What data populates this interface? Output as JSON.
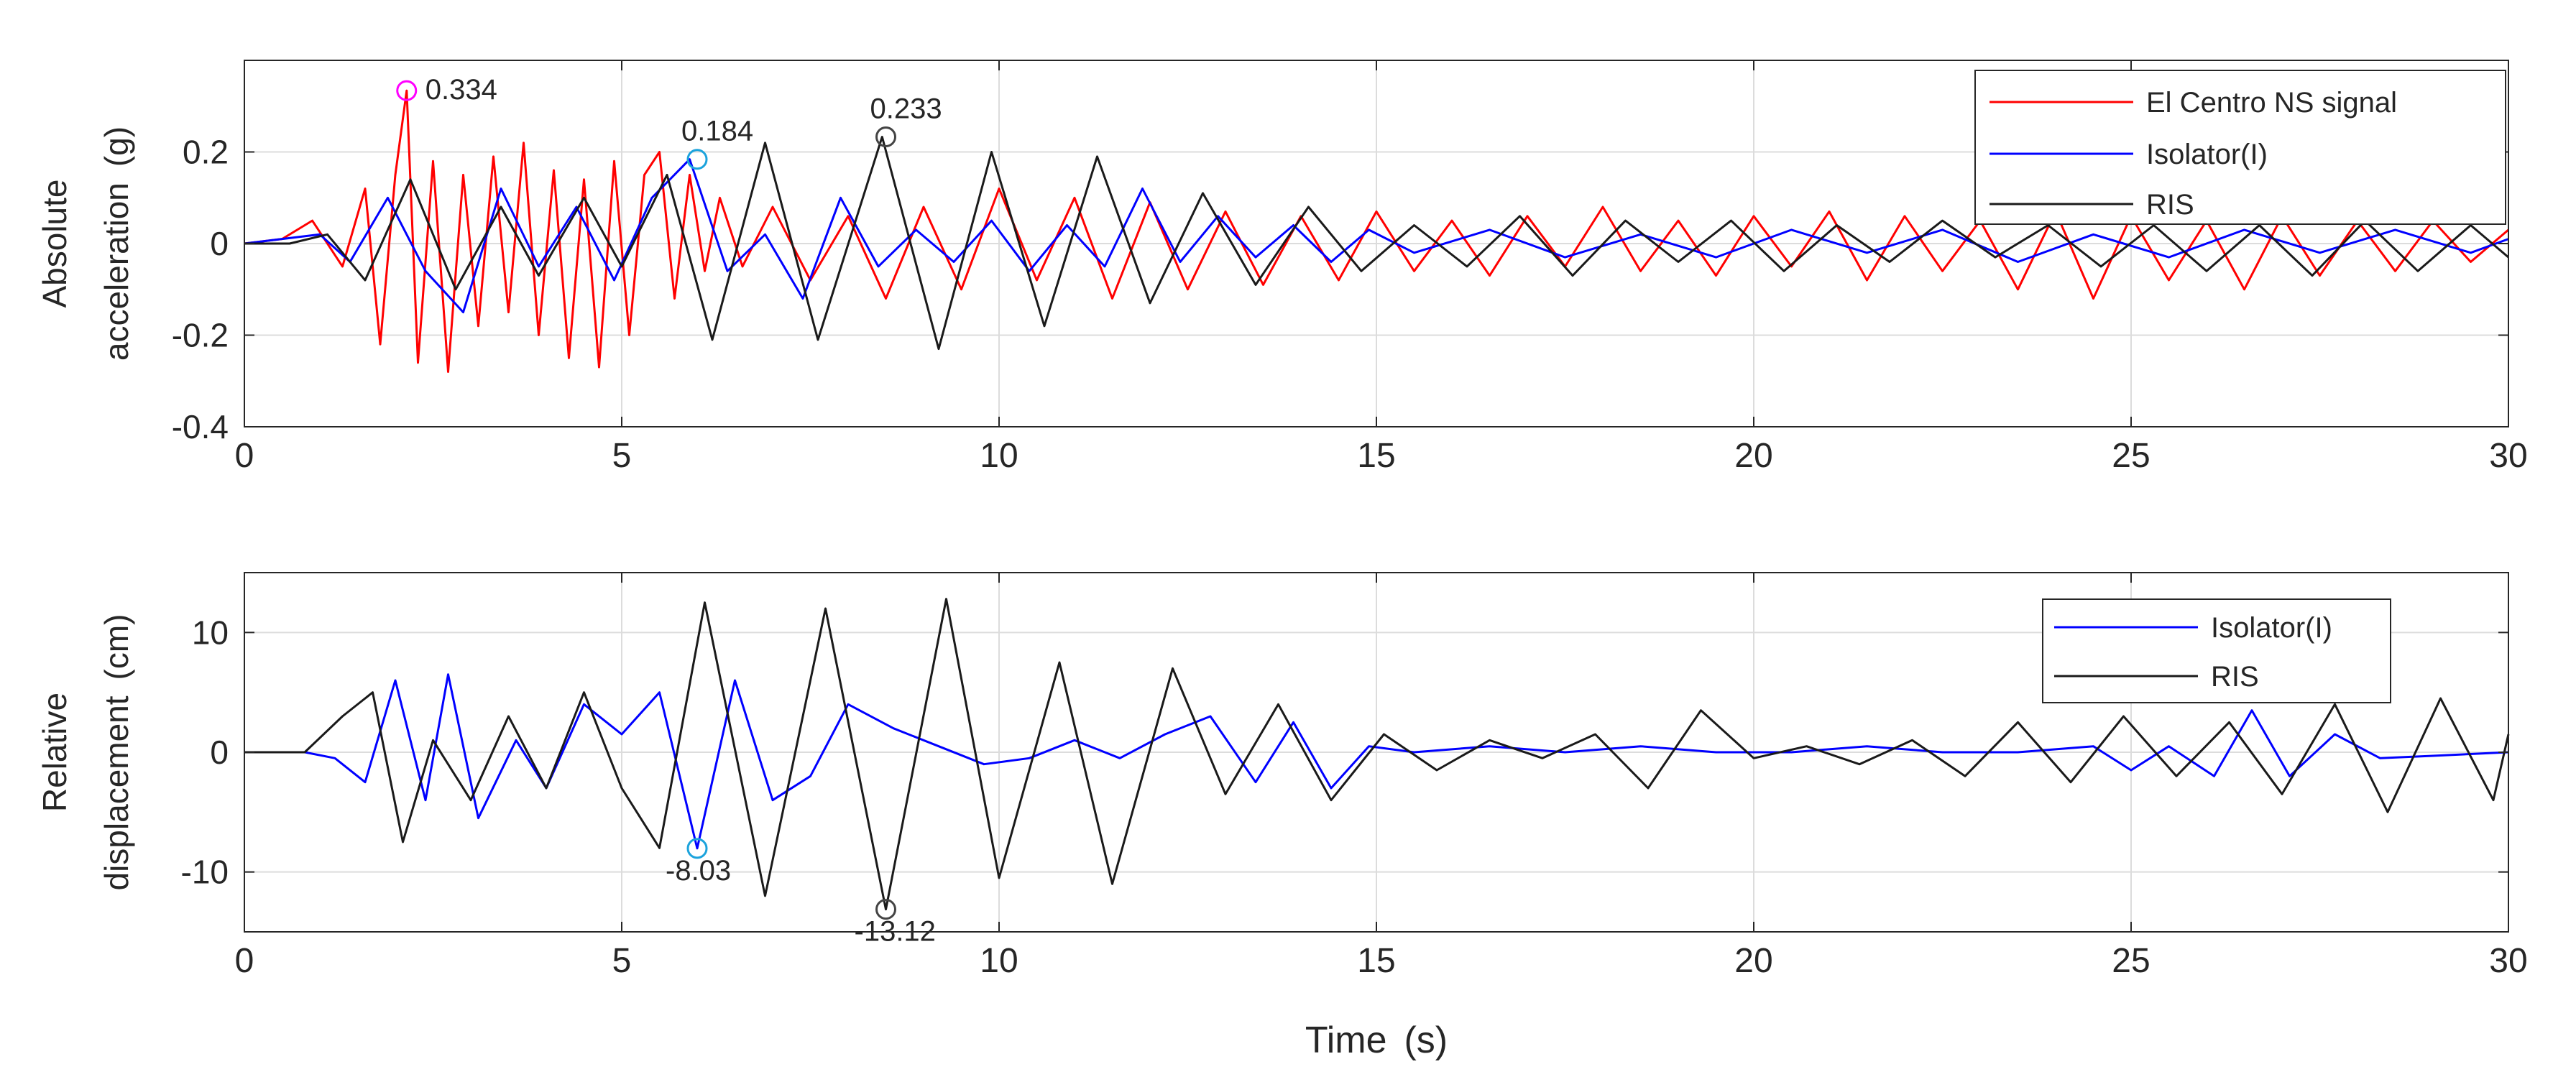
{
  "chart_data": [
    {
      "type": "line",
      "ylabel_line1": "Absolute",
      "ylabel_line2": "acceleration",
      "ylabel_unit": "(g)",
      "xlim": [
        0,
        30
      ],
      "ylim": [
        -0.4,
        0.4
      ],
      "xticks": [
        0,
        5,
        10,
        15,
        20,
        25,
        30
      ],
      "yticks": [
        -0.4,
        -0.2,
        0,
        0.2
      ],
      "ytick_labels": [
        "-0.4",
        "-0.2",
        "0",
        "0.2"
      ],
      "grid": true,
      "legend_position": "top-right",
      "series": [
        {
          "name": "El Centro NS signal",
          "color": "#ff0000",
          "x": [
            0,
            0.5,
            0.9,
            1.3,
            1.6,
            1.8,
            2.0,
            2.15,
            2.3,
            2.5,
            2.7,
            2.9,
            3.1,
            3.3,
            3.5,
            3.7,
            3.9,
            4.1,
            4.3,
            4.5,
            4.7,
            4.9,
            5.1,
            5.3,
            5.5,
            5.7,
            5.9,
            6.1,
            6.3,
            6.6,
            7.0,
            7.5,
            8.0,
            8.5,
            9.0,
            9.5,
            10.0,
            10.5,
            11.0,
            11.5,
            12.0,
            12.5,
            13.0,
            13.5,
            14.0,
            14.5,
            15.0,
            15.5,
            16.0,
            16.5,
            17.0,
            17.5,
            18.0,
            18.5,
            19.0,
            19.5,
            20.0,
            20.5,
            21.0,
            21.5,
            22.0,
            22.5,
            23.0,
            23.5,
            24.0,
            24.5,
            25.0,
            25.5,
            26.0,
            26.5,
            27.0,
            27.5,
            28.0,
            28.5,
            29.0,
            29.5,
            30.0
          ],
          "values": [
            0,
            0.01,
            0.05,
            -0.05,
            0.12,
            -0.22,
            0.15,
            0.334,
            -0.26,
            0.18,
            -0.28,
            0.15,
            -0.18,
            0.19,
            -0.15,
            0.22,
            -0.2,
            0.16,
            -0.25,
            0.14,
            -0.27,
            0.18,
            -0.2,
            0.15,
            0.2,
            -0.12,
            0.15,
            -0.06,
            0.1,
            -0.05,
            0.08,
            -0.08,
            0.06,
            -0.12,
            0.08,
            -0.1,
            0.12,
            -0.08,
            0.1,
            -0.12,
            0.09,
            -0.1,
            0.07,
            -0.09,
            0.06,
            -0.08,
            0.07,
            -0.06,
            0.05,
            -0.07,
            0.06,
            -0.05,
            0.08,
            -0.06,
            0.05,
            -0.07,
            0.06,
            -0.05,
            0.07,
            -0.08,
            0.06,
            -0.06,
            0.05,
            -0.1,
            0.07,
            -0.12,
            0.06,
            -0.08,
            0.05,
            -0.1,
            0.06,
            -0.07,
            0.05,
            -0.06,
            0.05,
            -0.04,
            0.03
          ]
        },
        {
          "name": "Isolator(I)",
          "color": "#0000ff",
          "x": [
            0,
            0.5,
            1.0,
            1.4,
            1.9,
            2.4,
            2.9,
            3.4,
            3.9,
            4.4,
            4.9,
            5.4,
            5.9,
            6.4,
            6.9,
            7.4,
            7.9,
            8.4,
            8.9,
            9.4,
            9.9,
            10.4,
            10.9,
            11.4,
            11.9,
            12.4,
            12.9,
            13.4,
            13.9,
            14.4,
            14.9,
            15.5,
            16.5,
            17.5,
            18.5,
            19.5,
            20.5,
            21.5,
            22.5,
            23.5,
            24.5,
            25.5,
            26.5,
            27.5,
            28.5,
            29.5,
            30.0
          ],
          "values": [
            0,
            0.01,
            0.02,
            -0.04,
            0.1,
            -0.06,
            -0.15,
            0.12,
            -0.05,
            0.08,
            -0.08,
            0.1,
            0.184,
            -0.06,
            0.02,
            -0.12,
            0.1,
            -0.05,
            0.03,
            -0.04,
            0.05,
            -0.06,
            0.04,
            -0.05,
            0.12,
            -0.04,
            0.06,
            -0.03,
            0.04,
            -0.04,
            0.03,
            -0.02,
            0.03,
            -0.03,
            0.02,
            -0.03,
            0.03,
            -0.02,
            0.03,
            -0.04,
            0.02,
            -0.03,
            0.03,
            -0.02,
            0.03,
            -0.02,
            0.01
          ]
        },
        {
          "name": "RIS",
          "color": "#1a1a1a",
          "x": [
            0,
            0.6,
            1.1,
            1.6,
            2.2,
            2.8,
            3.4,
            3.9,
            4.5,
            5.0,
            5.6,
            6.2,
            6.9,
            7.6,
            8.45,
            9.2,
            9.9,
            10.6,
            11.3,
            12.0,
            12.7,
            13.4,
            14.1,
            14.8,
            15.5,
            16.2,
            16.9,
            17.6,
            18.3,
            19.0,
            19.7,
            20.4,
            21.1,
            21.8,
            22.5,
            23.2,
            23.9,
            24.6,
            25.3,
            26.0,
            26.7,
            27.4,
            28.1,
            28.8,
            29.5,
            30.0
          ],
          "values": [
            0,
            0.0,
            0.02,
            -0.08,
            0.14,
            -0.1,
            0.08,
            -0.07,
            0.1,
            -0.05,
            0.15,
            -0.21,
            0.22,
            -0.21,
            0.233,
            -0.23,
            0.2,
            -0.18,
            0.19,
            -0.13,
            0.11,
            -0.09,
            0.08,
            -0.06,
            0.04,
            -0.05,
            0.06,
            -0.07,
            0.05,
            -0.04,
            0.05,
            -0.06,
            0.04,
            -0.04,
            0.05,
            -0.03,
            0.04,
            -0.05,
            0.04,
            -0.06,
            0.04,
            -0.07,
            0.05,
            -0.06,
            0.04,
            -0.03
          ]
        }
      ],
      "annotations": [
        {
          "x": 2.15,
          "y": 0.334,
          "text": "0.334",
          "color": "#ff00ff"
        },
        {
          "x": 6.0,
          "y": 0.184,
          "text": "0.184",
          "color": "#1ca3dc"
        },
        {
          "x": 8.5,
          "y": 0.233,
          "text": "0.233",
          "color": "#444444"
        }
      ]
    },
    {
      "type": "line",
      "ylabel_line1": "Relative",
      "ylabel_line2": "displacement",
      "ylabel_unit": "(cm)",
      "xlabel": "Time",
      "xlabel_unit": "(s)",
      "xlim": [
        0,
        30
      ],
      "ylim": [
        -15,
        15
      ],
      "xticks": [
        0,
        5,
        10,
        15,
        20,
        25,
        30
      ],
      "yticks": [
        -10,
        0,
        10
      ],
      "ytick_labels": [
        "-10",
        "0",
        "10"
      ],
      "grid": true,
      "legend_position": "top-right",
      "series": [
        {
          "name": "Isolator(I)",
          "color": "#0000ff",
          "x": [
            0,
            0.8,
            1.2,
            1.6,
            2.0,
            2.4,
            2.7,
            3.1,
            3.6,
            4.0,
            4.5,
            5.0,
            5.5,
            6.0,
            6.5,
            7.0,
            7.5,
            8.0,
            8.6,
            9.2,
            9.8,
            10.4,
            11.0,
            11.6,
            12.2,
            12.8,
            13.4,
            13.9,
            14.4,
            14.9,
            15.5,
            16.5,
            17.5,
            18.5,
            19.5,
            20.5,
            21.5,
            22.5,
            23.5,
            24.5,
            25.0,
            25.5,
            26.1,
            26.6,
            27.1,
            27.7,
            28.3,
            29.0,
            30.0
          ],
          "values": [
            0,
            0,
            -0.5,
            -2.5,
            6,
            -4,
            6.5,
            -5.5,
            1,
            -3,
            4,
            1.5,
            5,
            -8.03,
            6,
            -4,
            -2,
            4,
            2,
            0.5,
            -1,
            -0.5,
            1,
            -0.5,
            1.5,
            3,
            -2.5,
            2.5,
            -3,
            0.5,
            0,
            0.5,
            0,
            0.5,
            0,
            0,
            0.5,
            0,
            0,
            0.5,
            -1.5,
            0.5,
            -2,
            3.5,
            -2,
            1.5,
            -0.5,
            -0.3,
            0
          ]
        },
        {
          "name": "RIS",
          "color": "#1a1a1a",
          "x": [
            0,
            0.8,
            1.3,
            1.7,
            2.1,
            2.5,
            3.0,
            3.5,
            4.0,
            4.5,
            5.0,
            5.5,
            6.1,
            6.9,
            7.7,
            8.5,
            9.3,
            10.0,
            10.8,
            11.5,
            12.3,
            13.0,
            13.7,
            14.4,
            15.1,
            15.8,
            16.5,
            17.2,
            17.9,
            18.6,
            19.3,
            20.0,
            20.7,
            21.4,
            22.1,
            22.8,
            23.5,
            24.2,
            24.9,
            25.6,
            26.3,
            27.0,
            27.7,
            28.4,
            29.1,
            29.8,
            30.0
          ],
          "values": [
            0,
            0,
            3,
            5,
            -7.5,
            1,
            -4,
            3,
            -3,
            5,
            -3,
            -8,
            12.5,
            -12,
            12,
            -13.12,
            12.8,
            -10.5,
            7.5,
            -11,
            7,
            -3.5,
            4,
            -4,
            1.5,
            -1.5,
            1,
            -0.5,
            1.5,
            -3,
            3.5,
            -0.5,
            0.5,
            -1,
            1,
            -2,
            2.5,
            -2.5,
            3,
            -2,
            2.5,
            -3.5,
            4,
            -5,
            4.5,
            -4,
            1.5
          ]
        }
      ],
      "annotations": [
        {
          "x": 6.0,
          "y": -8.03,
          "text": "-8.03",
          "color": "#1ca3dc"
        },
        {
          "x": 8.5,
          "y": -13.12,
          "text": "-13.12",
          "color": "#444444"
        }
      ]
    }
  ]
}
